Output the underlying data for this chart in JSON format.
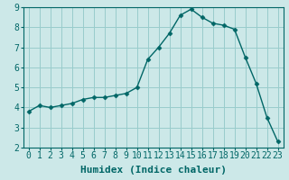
{
  "x": [
    0,
    1,
    2,
    3,
    4,
    5,
    6,
    7,
    8,
    9,
    10,
    11,
    12,
    13,
    14,
    15,
    16,
    17,
    18,
    19,
    20,
    21,
    22,
    23
  ],
  "y": [
    3.8,
    4.1,
    4.0,
    4.1,
    4.2,
    4.4,
    4.5,
    4.5,
    4.6,
    4.7,
    5.0,
    6.4,
    7.0,
    7.7,
    8.6,
    8.9,
    8.5,
    8.2,
    8.1,
    7.9,
    6.5,
    5.2,
    3.5,
    2.3
  ],
  "line_color": "#006666",
  "marker": "D",
  "marker_size": 2.5,
  "bg_color": "#cce8e8",
  "grid_color": "#99cccc",
  "xlabel": "Humidex (Indice chaleur)",
  "xlabel_fontsize": 8,
  "xlim": [
    -0.5,
    23.5
  ],
  "ylim": [
    2,
    9
  ],
  "yticks": [
    2,
    3,
    4,
    5,
    6,
    7,
    8,
    9
  ],
  "xtick_labels": [
    "0",
    "1",
    "2",
    "3",
    "4",
    "5",
    "6",
    "7",
    "8",
    "9",
    "10",
    "11",
    "12",
    "13",
    "14",
    "15",
    "16",
    "17",
    "18",
    "19",
    "20",
    "21",
    "22",
    "23"
  ],
  "tick_fontsize": 7,
  "line_width": 1.0,
  "axis_color": "#006666"
}
